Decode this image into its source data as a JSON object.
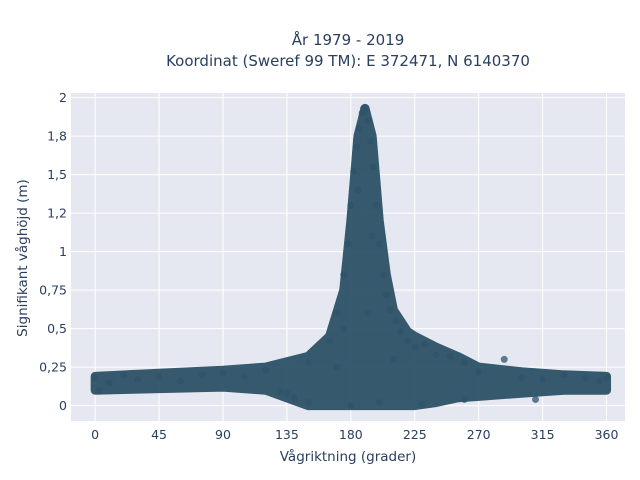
{
  "chart_data": {
    "type": "scatter",
    "title_line1": "År 1979 - 2019",
    "title_line2": "Koordinat (Sweref 99 TM): E 372471, N 6140370",
    "xlabel": "Vågriktning (grader)",
    "ylabel": "Signifikant våghöjd (m)",
    "xlim": [
      -17,
      373
    ],
    "ylim": [
      -0.1,
      2.03
    ],
    "xticks": [
      0,
      45,
      90,
      135,
      180,
      225,
      270,
      315,
      360
    ],
    "xtick_labels": [
      "0",
      "45",
      "90",
      "135",
      "180",
      "225",
      "270",
      "315",
      "360"
    ],
    "yticks": [
      0,
      0.25,
      0.5,
      0.75,
      1,
      1.25,
      1.5,
      1.75,
      2
    ],
    "ytick_labels": [
      "0",
      "0,25",
      "0,5",
      "0,75",
      "1",
      "1,2",
      "1,5",
      "1,8",
      "2"
    ],
    "grid": true,
    "marker_color": "#2f5469",
    "plot_bg": "#e5e8f0",
    "envelope": {
      "x": [
        0,
        45,
        90,
        120,
        150,
        165,
        175,
        180,
        185,
        190,
        195,
        200,
        205,
        210,
        220,
        225,
        240,
        255,
        270,
        300,
        330,
        360
      ],
      "y_max": [
        0.19,
        0.21,
        0.23,
        0.25,
        0.32,
        0.45,
        0.75,
        1.2,
        1.75,
        1.93,
        1.75,
        1.2,
        0.85,
        0.62,
        0.48,
        0.45,
        0.38,
        0.32,
        0.25,
        0.22,
        0.2,
        0.19
      ],
      "y_min": [
        0.1,
        0.11,
        0.12,
        0.1,
        0.0,
        0.0,
        0.0,
        0.0,
        0.0,
        0.0,
        0.0,
        0.0,
        0.0,
        0.0,
        0.0,
        0.0,
        0.02,
        0.05,
        0.06,
        0.08,
        0.1,
        0.1
      ]
    },
    "points": [
      [
        0,
        0.18
      ],
      [
        3,
        0.1
      ],
      [
        10,
        0.15
      ],
      [
        20,
        0.2
      ],
      [
        30,
        0.17
      ],
      [
        45,
        0.19
      ],
      [
        60,
        0.16
      ],
      [
        75,
        0.2
      ],
      [
        90,
        0.21
      ],
      [
        105,
        0.19
      ],
      [
        120,
        0.23
      ],
      [
        130,
        0.09
      ],
      [
        135,
        0.08
      ],
      [
        150,
        0.28
      ],
      [
        165,
        0.42
      ],
      [
        170,
        0.6
      ],
      [
        175,
        0.85
      ],
      [
        178,
        1.05
      ],
      [
        180,
        1.3
      ],
      [
        182,
        1.52
      ],
      [
        184,
        1.68
      ],
      [
        186,
        1.8
      ],
      [
        188,
        1.9
      ],
      [
        189,
        1.93
      ],
      [
        190,
        1.91
      ],
      [
        192,
        1.85
      ],
      [
        194,
        1.72
      ],
      [
        196,
        1.55
      ],
      [
        198,
        1.3
      ],
      [
        200,
        1.05
      ],
      [
        203,
        0.85
      ],
      [
        205,
        0.72
      ],
      [
        208,
        0.62
      ],
      [
        212,
        0.55
      ],
      [
        215,
        0.48
      ],
      [
        220,
        0.42
      ],
      [
        225,
        0.38
      ],
      [
        232,
        0.4
      ],
      [
        240,
        0.33
      ],
      [
        250,
        0.32
      ],
      [
        260,
        0.28
      ],
      [
        270,
        0.22
      ],
      [
        288,
        0.3
      ],
      [
        300,
        0.18
      ],
      [
        310,
        0.04
      ],
      [
        315,
        0.17
      ],
      [
        330,
        0.2
      ],
      [
        345,
        0.18
      ],
      [
        355,
        0.16
      ],
      [
        360,
        0.18
      ],
      [
        180,
        0.0
      ],
      [
        200,
        0.02
      ],
      [
        230,
        0.01
      ],
      [
        260,
        0.04
      ],
      [
        150,
        0.02
      ],
      [
        140,
        0.05
      ],
      [
        175,
        0.5
      ],
      [
        195,
        1.1
      ],
      [
        185,
        1.4
      ],
      [
        192,
        0.6
      ],
      [
        210,
        0.3
      ],
      [
        170,
        0.25
      ]
    ]
  }
}
